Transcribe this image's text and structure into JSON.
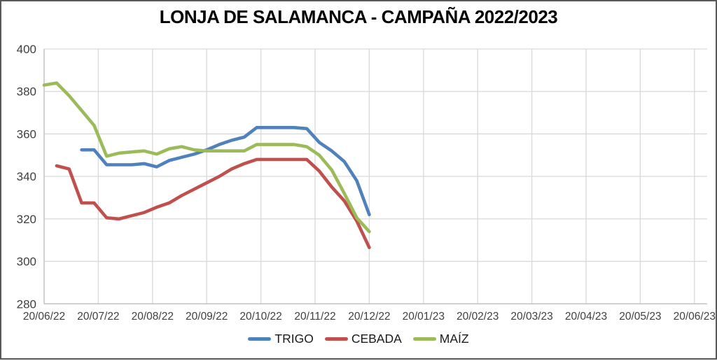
{
  "title": "LONJA DE SALAMANCA - CAMPAÑA 2022/2023",
  "colors": {
    "trigo": "#4F81BD",
    "cebada": "#C0504D",
    "maiz": "#9BBB59",
    "gridline": "#D9D9D9",
    "axis_line": "#BFBFBF",
    "tick_text": "#3f3f3f",
    "frame": "#595959"
  },
  "chart_data": {
    "type": "line",
    "title": "LONJA DE SALAMANCA - CAMPAÑA 2022/2023",
    "xlabel": "",
    "ylabel": "",
    "ylim": [
      280,
      400
    ],
    "y_ticks": [
      400,
      380,
      360,
      340,
      320,
      300,
      280
    ],
    "x_tick_labels": [
      "20/06/22",
      "20/07/22",
      "20/08/22",
      "20/09/22",
      "20/10/22",
      "20/11/22",
      "20/12/22",
      "20/01/23",
      "20/02/23",
      "20/03/23",
      "20/04/23",
      "20/05/23",
      "20/06/23"
    ],
    "x_unit": "weekly sessions, index 0 = 20/06/22 (26 weeks to 20/12/22)",
    "grid": true,
    "legend_position": "bottom",
    "series": [
      {
        "name": "TRIGO",
        "color": "#4F81BD",
        "start_index": 3,
        "values": [
          352.5,
          352.5,
          345.5,
          345.5,
          345.5,
          346,
          344.5,
          347.5,
          349,
          350.5,
          352.5,
          355,
          357,
          358.5,
          363,
          363,
          363,
          363,
          362.5,
          356,
          352,
          347,
          338,
          322
        ]
      },
      {
        "name": "CEBADA",
        "color": "#C0504D",
        "start_index": 1,
        "values": [
          345,
          343.5,
          327.5,
          327.5,
          320.5,
          320,
          321.5,
          323,
          325.5,
          327.5,
          331,
          334,
          337,
          340,
          343.5,
          346,
          348,
          348,
          348,
          348,
          348,
          342.5,
          335,
          328.5,
          319,
          306.5
        ]
      },
      {
        "name": "MAÍZ",
        "color": "#9BBB59",
        "start_index": 0,
        "values": [
          383,
          384,
          378,
          371,
          364,
          349.5,
          351,
          351.5,
          352,
          350.5,
          353,
          354,
          352.5,
          352,
          352,
          352,
          352,
          355,
          355,
          355,
          355,
          354,
          350,
          343,
          332,
          320.5,
          314
        ]
      }
    ]
  }
}
